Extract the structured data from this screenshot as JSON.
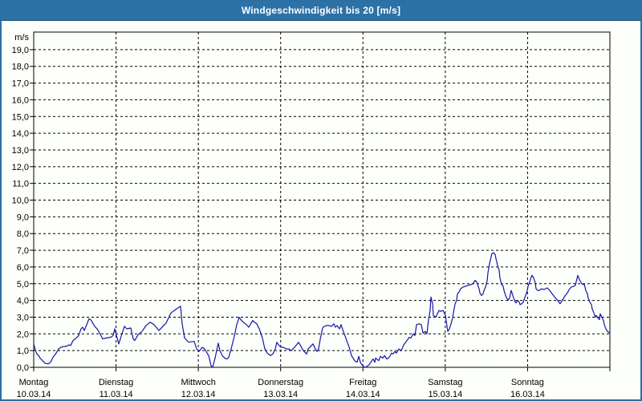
{
  "window": {
    "title": "Windgeschwindigkeit bis 20 [m/s]"
  },
  "colors": {
    "titlebar": "#2D72A7",
    "window_border": "#2B6FA3",
    "background": "#FDFFFA",
    "grid": "#000000",
    "axis_text": "#000000",
    "line": "#1414AA"
  },
  "chart_data": {
    "type": "line",
    "title": "Windgeschwindigkeit bis 20 [m/s]",
    "ylabel": "m/s",
    "ylim": [
      0,
      20.05
    ],
    "ytick_step": 1,
    "ytick_max_labeled": 19,
    "decimal_separator": ",",
    "grid": "dashed",
    "legend_position": "none",
    "x_days": [
      {
        "name": "Montag",
        "date": "10.03.14"
      },
      {
        "name": "Dienstag",
        "date": "11.03.14"
      },
      {
        "name": "Mittwoch",
        "date": "12.03.14"
      },
      {
        "name": "Donnerstag",
        "date": "13.03.14"
      },
      {
        "name": "Freitag",
        "date": "14.03.14"
      },
      {
        "name": "Samstag",
        "date": "15.03.14"
      },
      {
        "name": "Sonntag",
        "date": "16.03.14"
      }
    ],
    "xlim_days": [
      0,
      7
    ],
    "series": [
      {
        "name": "Windgeschwindigkeit [m/s]",
        "color": "#1414AA",
        "points": [
          [
            0.0,
            1.4
          ],
          [
            0.019,
            1.05
          ],
          [
            0.039,
            0.8
          ],
          [
            0.059,
            0.7
          ],
          [
            0.078,
            0.55
          ],
          [
            0.107,
            0.4
          ],
          [
            0.136,
            0.25
          ],
          [
            0.175,
            0.2
          ],
          [
            0.205,
            0.3
          ],
          [
            0.234,
            0.6
          ],
          [
            0.273,
            0.85
          ],
          [
            0.302,
            1.1
          ],
          [
            0.331,
            1.2
          ],
          [
            0.37,
            1.25
          ],
          [
            0.4,
            1.25
          ],
          [
            0.429,
            1.35
          ],
          [
            0.448,
            1.3
          ],
          [
            0.478,
            1.6
          ],
          [
            0.517,
            1.75
          ],
          [
            0.546,
            1.9
          ],
          [
            0.575,
            2.3
          ],
          [
            0.595,
            2.4
          ],
          [
            0.614,
            2.2
          ],
          [
            0.643,
            2.55
          ],
          [
            0.673,
            2.9
          ],
          [
            0.692,
            2.85
          ],
          [
            0.712,
            2.7
          ],
          [
            0.741,
            2.45
          ],
          [
            0.77,
            2.3
          ],
          [
            0.79,
            2.15
          ],
          [
            0.838,
            1.7
          ],
          [
            0.877,
            1.75
          ],
          [
            0.936,
            1.8
          ],
          [
            0.965,
            1.9
          ],
          [
            0.985,
            2.3
          ],
          [
            1.014,
            1.75
          ],
          [
            1.033,
            1.4
          ],
          [
            1.072,
            2.0
          ],
          [
            1.102,
            2.45
          ],
          [
            1.131,
            2.3
          ],
          [
            1.18,
            2.35
          ],
          [
            1.209,
            1.7
          ],
          [
            1.228,
            1.6
          ],
          [
            1.267,
            1.95
          ],
          [
            1.316,
            2.15
          ],
          [
            1.365,
            2.5
          ],
          [
            1.414,
            2.7
          ],
          [
            1.462,
            2.55
          ],
          [
            1.521,
            2.2
          ],
          [
            1.57,
            2.45
          ],
          [
            1.609,
            2.65
          ],
          [
            1.667,
            3.25
          ],
          [
            1.735,
            3.5
          ],
          [
            1.784,
            3.65
          ],
          [
            1.804,
            2.6
          ],
          [
            1.833,
            1.75
          ],
          [
            1.882,
            1.5
          ],
          [
            1.95,
            1.55
          ],
          [
            1.979,
            1.1
          ],
          [
            2.008,
            0.95
          ],
          [
            2.047,
            1.2
          ],
          [
            2.077,
            1.1
          ],
          [
            2.125,
            0.7
          ],
          [
            2.155,
            0.1
          ],
          [
            2.174,
            0.0
          ],
          [
            2.203,
            0.55
          ],
          [
            2.242,
            1.45
          ],
          [
            2.262,
            1.0
          ],
          [
            2.291,
            0.7
          ],
          [
            2.32,
            0.55
          ],
          [
            2.35,
            0.5
          ],
          [
            2.369,
            0.6
          ],
          [
            2.398,
            1.1
          ],
          [
            2.437,
            1.85
          ],
          [
            2.467,
            2.55
          ],
          [
            2.496,
            3.0
          ],
          [
            2.515,
            2.85
          ],
          [
            2.545,
            2.7
          ],
          [
            2.584,
            2.55
          ],
          [
            2.613,
            2.4
          ],
          [
            2.642,
            2.65
          ],
          [
            2.662,
            2.8
          ],
          [
            2.681,
            2.7
          ],
          [
            2.71,
            2.6
          ],
          [
            2.74,
            2.3
          ],
          [
            2.779,
            1.75
          ],
          [
            2.808,
            1.1
          ],
          [
            2.837,
            0.85
          ],
          [
            2.876,
            0.7
          ],
          [
            2.905,
            0.8
          ],
          [
            2.935,
            1.1
          ],
          [
            2.954,
            1.5
          ],
          [
            2.974,
            1.35
          ],
          [
            3.003,
            1.2
          ],
          [
            3.032,
            1.2
          ],
          [
            3.071,
            1.1
          ],
          [
            3.1,
            1.1
          ],
          [
            3.13,
            1.0
          ],
          [
            3.149,
            1.1
          ],
          [
            3.178,
            1.25
          ],
          [
            3.217,
            1.5
          ],
          [
            3.247,
            1.25
          ],
          [
            3.276,
            1.0
          ],
          [
            3.315,
            0.8
          ],
          [
            3.334,
            1.1
          ],
          [
            3.364,
            1.25
          ],
          [
            3.393,
            1.4
          ],
          [
            3.422,
            1.1
          ],
          [
            3.442,
            0.95
          ],
          [
            3.461,
            1.1
          ],
          [
            3.481,
            1.7
          ],
          [
            3.51,
            2.35
          ],
          [
            3.529,
            2.45
          ],
          [
            3.559,
            2.5
          ],
          [
            3.588,
            2.5
          ],
          [
            3.617,
            2.45
          ],
          [
            3.646,
            2.6
          ],
          [
            3.666,
            2.4
          ],
          [
            3.685,
            2.5
          ],
          [
            3.715,
            2.3
          ],
          [
            3.734,
            2.55
          ],
          [
            3.754,
            2.25
          ],
          [
            3.773,
            2.0
          ],
          [
            3.802,
            1.6
          ],
          [
            3.832,
            1.2
          ],
          [
            3.861,
            0.7
          ],
          [
            3.9,
            0.4
          ],
          [
            3.929,
            0.3
          ],
          [
            3.949,
            0.65
          ],
          [
            3.968,
            0.3
          ],
          [
            3.988,
            0.15
          ],
          [
            4.007,
            0.05
          ],
          [
            4.027,
            0.0
          ],
          [
            4.046,
            0.05
          ],
          [
            4.075,
            0.15
          ],
          [
            4.095,
            0.3
          ],
          [
            4.124,
            0.5
          ],
          [
            4.144,
            0.3
          ],
          [
            4.153,
            0.55
          ],
          [
            4.192,
            0.4
          ],
          [
            4.212,
            0.65
          ],
          [
            4.241,
            0.55
          ],
          [
            4.261,
            0.7
          ],
          [
            4.29,
            0.5
          ],
          [
            4.319,
            0.6
          ],
          [
            4.348,
            0.85
          ],
          [
            4.368,
            0.8
          ],
          [
            4.387,
            0.95
          ],
          [
            4.407,
            0.85
          ],
          [
            4.436,
            1.1
          ],
          [
            4.465,
            1.0
          ],
          [
            4.495,
            1.35
          ],
          [
            4.534,
            1.6
          ],
          [
            4.563,
            1.8
          ],
          [
            4.582,
            1.75
          ],
          [
            4.612,
            2.0
          ],
          [
            4.631,
            1.9
          ],
          [
            4.651,
            2.55
          ],
          [
            4.68,
            2.6
          ],
          [
            4.709,
            2.55
          ],
          [
            4.729,
            2.05
          ],
          [
            4.758,
            2.15
          ],
          [
            4.777,
            2.0
          ],
          [
            4.797,
            2.85
          ],
          [
            4.816,
            3.4
          ],
          [
            4.826,
            4.2
          ],
          [
            4.846,
            3.8
          ],
          [
            4.855,
            3.1
          ],
          [
            4.885,
            3.0
          ],
          [
            4.904,
            3.2
          ],
          [
            4.924,
            3.4
          ],
          [
            4.943,
            3.35
          ],
          [
            4.972,
            3.4
          ],
          [
            5.002,
            3.1
          ],
          [
            5.021,
            2.45
          ],
          [
            5.031,
            2.15
          ],
          [
            5.05,
            2.3
          ],
          [
            5.07,
            2.6
          ],
          [
            5.089,
            2.95
          ],
          [
            5.099,
            3.25
          ],
          [
            5.119,
            3.8
          ],
          [
            5.138,
            4.0
          ],
          [
            5.148,
            4.4
          ],
          [
            5.167,
            4.5
          ],
          [
            5.187,
            4.7
          ],
          [
            5.216,
            4.8
          ],
          [
            5.245,
            4.85
          ],
          [
            5.275,
            4.9
          ],
          [
            5.314,
            4.95
          ],
          [
            5.333,
            5.0
          ],
          [
            5.343,
            5.05
          ],
          [
            5.362,
            5.2
          ],
          [
            5.382,
            5.1
          ],
          [
            5.392,
            4.95
          ],
          [
            5.411,
            4.7
          ],
          [
            5.421,
            4.45
          ],
          [
            5.44,
            4.3
          ],
          [
            5.46,
            4.4
          ],
          [
            5.47,
            4.6
          ],
          [
            5.489,
            4.8
          ],
          [
            5.509,
            5.2
          ],
          [
            5.518,
            5.65
          ],
          [
            5.538,
            6.2
          ],
          [
            5.557,
            6.6
          ],
          [
            5.567,
            6.8
          ],
          [
            5.587,
            6.85
          ],
          [
            5.606,
            6.75
          ],
          [
            5.616,
            6.5
          ],
          [
            5.635,
            6.1
          ],
          [
            5.655,
            5.8
          ],
          [
            5.664,
            5.35
          ],
          [
            5.684,
            4.95
          ],
          [
            5.703,
            4.85
          ],
          [
            5.713,
            4.6
          ],
          [
            5.733,
            4.3
          ],
          [
            5.762,
            4.0
          ],
          [
            5.781,
            4.15
          ],
          [
            5.801,
            4.6
          ],
          [
            5.811,
            4.45
          ],
          [
            5.83,
            4.15
          ],
          [
            5.85,
            3.9
          ],
          [
            5.859,
            3.85
          ],
          [
            5.879,
            4.0
          ],
          [
            5.898,
            3.9
          ],
          [
            5.908,
            3.75
          ],
          [
            5.928,
            3.8
          ],
          [
            5.947,
            3.9
          ],
          [
            5.957,
            4.05
          ],
          [
            5.976,
            4.3
          ],
          [
            5.996,
            4.6
          ],
          [
            6.006,
            4.85
          ],
          [
            6.025,
            5.1
          ],
          [
            6.045,
            5.4
          ],
          [
            6.054,
            5.5
          ],
          [
            6.074,
            5.35
          ],
          [
            6.093,
            5.05
          ],
          [
            6.103,
            4.7
          ],
          [
            6.122,
            4.6
          ],
          [
            6.142,
            4.6
          ],
          [
            6.171,
            4.7
          ],
          [
            6.2,
            4.65
          ],
          [
            6.239,
            4.75
          ],
          [
            6.269,
            4.6
          ],
          [
            6.298,
            4.4
          ],
          [
            6.337,
            4.15
          ],
          [
            6.366,
            4.0
          ],
          [
            6.395,
            3.8
          ],
          [
            6.415,
            3.95
          ],
          [
            6.444,
            4.2
          ],
          [
            6.483,
            4.45
          ],
          [
            6.512,
            4.7
          ],
          [
            6.532,
            4.8
          ],
          [
            6.561,
            4.85
          ],
          [
            6.58,
            4.9
          ],
          [
            6.61,
            5.5
          ],
          [
            6.629,
            5.25
          ],
          [
            6.659,
            5.0
          ],
          [
            6.678,
            4.95
          ],
          [
            6.688,
            5.0
          ],
          [
            6.707,
            4.6
          ],
          [
            6.727,
            4.4
          ],
          [
            6.737,
            4.15
          ],
          [
            6.756,
            3.9
          ],
          [
            6.776,
            3.75
          ],
          [
            6.785,
            3.5
          ],
          [
            6.805,
            3.25
          ],
          [
            6.824,
            3.0
          ],
          [
            6.834,
            3.1
          ],
          [
            6.854,
            2.95
          ],
          [
            6.873,
            2.85
          ],
          [
            6.883,
            3.2
          ],
          [
            6.902,
            3.0
          ],
          [
            6.922,
            2.8
          ],
          [
            6.932,
            2.55
          ],
          [
            6.951,
            2.3
          ],
          [
            6.971,
            2.15
          ],
          [
            7.0,
            2.05
          ]
        ]
      }
    ]
  }
}
